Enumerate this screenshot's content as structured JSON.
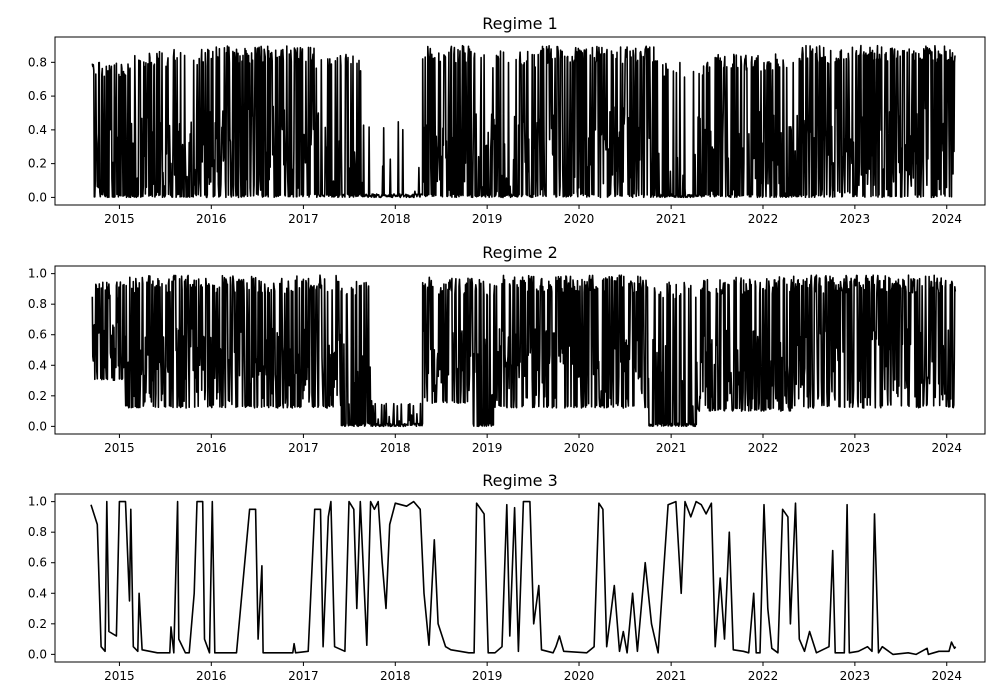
{
  "chart_data": [
    {
      "type": "line",
      "title": "Regime 1",
      "xlabel": "",
      "ylabel": "",
      "x_range": [
        "2014-04-20",
        "2024-06-01"
      ],
      "ylim": [
        -0.045,
        0.95
      ],
      "xticks": [
        "2015",
        "2016",
        "2017",
        "2018",
        "2019",
        "2020",
        "2021",
        "2022",
        "2023",
        "2024"
      ],
      "yticks": [
        "0.0",
        "0.2",
        "0.4",
        "0.6",
        "0.8"
      ],
      "ytick_values": [
        0,
        0.2,
        0.4,
        0.6,
        0.8
      ],
      "grid": false,
      "segments": [
        {
          "start": "2014-09-15",
          "end": "2015-03-01",
          "baseline": 0.0,
          "peak": 0.8,
          "density": 0.75
        },
        {
          "start": "2015-03-01",
          "end": "2016-01-15",
          "baseline": 0.0,
          "peak": 0.88,
          "density": 0.8
        },
        {
          "start": "2016-01-15",
          "end": "2017-02-15",
          "baseline": 0.0,
          "peak": 0.9,
          "density": 0.85
        },
        {
          "start": "2017-02-15",
          "end": "2017-09-01",
          "baseline": 0.0,
          "peak": 0.85,
          "density": 0.5
        },
        {
          "start": "2017-09-01",
          "end": "2018-04-20",
          "baseline": 0.0,
          "peak": 0.45,
          "density": 0.12
        },
        {
          "start": "2018-04-20",
          "end": "2019-01-20",
          "baseline": 0.0,
          "peak": 0.9,
          "density": 0.75
        },
        {
          "start": "2019-01-20",
          "end": "2019-08-01",
          "baseline": 0.0,
          "peak": 0.87,
          "density": 0.55
        },
        {
          "start": "2019-08-01",
          "end": "2020-11-15",
          "baseline": 0.0,
          "peak": 0.9,
          "density": 0.85
        },
        {
          "start": "2020-11-15",
          "end": "2021-06-01",
          "baseline": 0.0,
          "peak": 0.8,
          "density": 0.3
        },
        {
          "start": "2021-06-01",
          "end": "2022-06-01",
          "baseline": 0.0,
          "peak": 0.85,
          "density": 0.65
        },
        {
          "start": "2022-06-01",
          "end": "2024-02-05",
          "baseline": 0.0,
          "peak": 0.9,
          "density": 0.9
        }
      ]
    },
    {
      "type": "line",
      "title": "Regime 2",
      "xlabel": "",
      "ylabel": "",
      "x_range": [
        "2014-04-20",
        "2024-06-01"
      ],
      "ylim": [
        -0.05,
        1.05
      ],
      "xticks": [
        "2015",
        "2016",
        "2017",
        "2018",
        "2019",
        "2020",
        "2021",
        "2022",
        "2023",
        "2024"
      ],
      "yticks": [
        "0.0",
        "0.2",
        "0.4",
        "0.6",
        "0.8",
        "1.0"
      ],
      "ytick_values": [
        0,
        0.2,
        0.4,
        0.6,
        0.8,
        1.0
      ],
      "grid": false,
      "segments": [
        {
          "start": "2014-09-15",
          "end": "2015-01-20",
          "baseline": 0.3,
          "peak": 0.95,
          "density": 0.85
        },
        {
          "start": "2015-01-20",
          "end": "2017-06-01",
          "baseline": 0.12,
          "peak": 0.99,
          "density": 0.9
        },
        {
          "start": "2017-06-01",
          "end": "2017-10-01",
          "baseline": 0.0,
          "peak": 0.95,
          "density": 0.45
        },
        {
          "start": "2017-10-01",
          "end": "2018-04-20",
          "baseline": 0.0,
          "peak": 0.15,
          "density": 0.35
        },
        {
          "start": "2018-04-20",
          "end": "2018-11-01",
          "baseline": 0.15,
          "peak": 0.98,
          "density": 0.9
        },
        {
          "start": "2018-11-01",
          "end": "2019-02-01",
          "baseline": 0.0,
          "peak": 0.97,
          "density": 0.5
        },
        {
          "start": "2019-02-01",
          "end": "2020-10-01",
          "baseline": 0.12,
          "peak": 0.99,
          "density": 0.9
        },
        {
          "start": "2020-10-01",
          "end": "2021-04-15",
          "baseline": 0.0,
          "peak": 0.95,
          "density": 0.4
        },
        {
          "start": "2021-04-15",
          "end": "2022-05-01",
          "baseline": 0.1,
          "peak": 0.98,
          "density": 0.8
        },
        {
          "start": "2022-05-01",
          "end": "2024-02-05",
          "baseline": 0.12,
          "peak": 0.99,
          "density": 0.95
        }
      ]
    },
    {
      "type": "line",
      "title": "Regime 3",
      "xlabel": "",
      "ylabel": "",
      "x_range": [
        "2014-04-20",
        "2024-06-01"
      ],
      "ylim": [
        -0.05,
        1.05
      ],
      "xticks": [
        "2015",
        "2016",
        "2017",
        "2018",
        "2019",
        "2020",
        "2021",
        "2022",
        "2023",
        "2024"
      ],
      "yticks": [
        "0.0",
        "0.2",
        "0.4",
        "0.6",
        "0.8",
        "1.0"
      ],
      "ytick_values": [
        0,
        0.2,
        0.4,
        0.6,
        0.8,
        1.0
      ],
      "grid": false,
      "points": [
        [
          "2014-09-10",
          0.98
        ],
        [
          "2014-10-05",
          0.85
        ],
        [
          "2014-10-20",
          0.05
        ],
        [
          "2014-11-05",
          0.02
        ],
        [
          "2014-11-12",
          1.0
        ],
        [
          "2014-11-20",
          0.15
        ],
        [
          "2014-12-20",
          0.12
        ],
        [
          "2015-01-01",
          1.0
        ],
        [
          "2015-01-25",
          1.0
        ],
        [
          "2015-02-10",
          0.35
        ],
        [
          "2015-02-15",
          0.95
        ],
        [
          "2015-02-25",
          0.05
        ],
        [
          "2015-03-15",
          0.02
        ],
        [
          "2015-03-20",
          0.4
        ],
        [
          "2015-04-01",
          0.03
        ],
        [
          "2015-06-01",
          0.01
        ],
        [
          "2015-07-20",
          0.01
        ],
        [
          "2015-07-25",
          0.18
        ],
        [
          "2015-08-05",
          0.01
        ],
        [
          "2015-08-20",
          1.0
        ],
        [
          "2015-08-25",
          0.1
        ],
        [
          "2015-09-20",
          0.01
        ],
        [
          "2015-10-05",
          0.01
        ],
        [
          "2015-10-25",
          0.4
        ],
        [
          "2015-11-05",
          1.0
        ],
        [
          "2015-11-28",
          1.0
        ],
        [
          "2015-12-05",
          0.1
        ],
        [
          "2015-12-25",
          0.01
        ],
        [
          "2016-01-05",
          1.0
        ],
        [
          "2016-01-15",
          0.01
        ],
        [
          "2016-03-20",
          0.01
        ],
        [
          "2016-04-10",
          0.01
        ],
        [
          "2016-06-01",
          0.95
        ],
        [
          "2016-06-25",
          0.95
        ],
        [
          "2016-07-05",
          0.1
        ],
        [
          "2016-07-20",
          0.58
        ],
        [
          "2016-07-25",
          0.01
        ],
        [
          "2016-10-01",
          0.01
        ],
        [
          "2016-11-20",
          0.01
        ],
        [
          "2016-11-25",
          0.07
        ],
        [
          "2016-12-01",
          0.01
        ],
        [
          "2017-01-20",
          0.02
        ],
        [
          "2017-02-15",
          0.95
        ],
        [
          "2017-03-10",
          0.95
        ],
        [
          "2017-03-20",
          0.05
        ],
        [
          "2017-04-10",
          0.9
        ],
        [
          "2017-04-20",
          1.0
        ],
        [
          "2017-05-05",
          0.05
        ],
        [
          "2017-06-15",
          0.02
        ],
        [
          "2017-07-01",
          1.0
        ],
        [
          "2017-07-20",
          0.95
        ],
        [
          "2017-08-01",
          0.3
        ],
        [
          "2017-08-15",
          1.0
        ],
        [
          "2017-09-10",
          0.06
        ],
        [
          "2017-09-25",
          1.0
        ],
        [
          "2017-10-10",
          0.95
        ],
        [
          "2017-10-25",
          1.0
        ],
        [
          "2017-11-10",
          0.6
        ],
        [
          "2017-11-25",
          0.3
        ],
        [
          "2017-12-10",
          0.85
        ],
        [
          "2018-01-01",
          0.99
        ],
        [
          "2018-02-15",
          0.97
        ],
        [
          "2018-03-15",
          1.0
        ],
        [
          "2018-04-10",
          0.95
        ],
        [
          "2018-04-25",
          0.4
        ],
        [
          "2018-05-15",
          0.06
        ],
        [
          "2018-06-05",
          0.75
        ],
        [
          "2018-06-20",
          0.2
        ],
        [
          "2018-07-20",
          0.05
        ],
        [
          "2018-08-10",
          0.03
        ],
        [
          "2018-09-15",
          0.02
        ],
        [
          "2018-10-20",
          0.01
        ],
        [
          "2018-11-10",
          0.01
        ],
        [
          "2018-11-20",
          0.99
        ],
        [
          "2018-12-20",
          0.92
        ],
        [
          "2019-01-05",
          0.01
        ],
        [
          "2019-02-01",
          0.01
        ],
        [
          "2019-03-01",
          0.05
        ],
        [
          "2019-03-20",
          0.98
        ],
        [
          "2019-04-01",
          0.12
        ],
        [
          "2019-04-20",
          0.96
        ],
        [
          "2019-05-05",
          0.02
        ],
        [
          "2019-05-25",
          1.0
        ],
        [
          "2019-06-20",
          1.0
        ],
        [
          "2019-07-05",
          0.2
        ],
        [
          "2019-07-25",
          0.45
        ],
        [
          "2019-08-05",
          0.03
        ],
        [
          "2019-09-20",
          0.01
        ],
        [
          "2019-10-01",
          0.05
        ],
        [
          "2019-10-15",
          0.12
        ],
        [
          "2019-11-01",
          0.02
        ],
        [
          "2020-02-01",
          0.01
        ],
        [
          "2020-03-01",
          0.05
        ],
        [
          "2020-03-20",
          0.99
        ],
        [
          "2020-04-05",
          0.95
        ],
        [
          "2020-04-20",
          0.05
        ],
        [
          "2020-05-20",
          0.45
        ],
        [
          "2020-06-10",
          0.02
        ],
        [
          "2020-06-25",
          0.15
        ],
        [
          "2020-07-10",
          0.01
        ],
        [
          "2020-08-01",
          0.4
        ],
        [
          "2020-08-20",
          0.02
        ],
        [
          "2020-09-20",
          0.6
        ],
        [
          "2020-10-15",
          0.2
        ],
        [
          "2020-11-10",
          0.01
        ],
        [
          "2020-12-20",
          0.98
        ],
        [
          "2021-01-20",
          1.0
        ],
        [
          "2021-02-10",
          0.4
        ],
        [
          "2021-02-25",
          1.0
        ],
        [
          "2021-03-20",
          0.9
        ],
        [
          "2021-04-10",
          1.0
        ],
        [
          "2021-05-01",
          0.98
        ],
        [
          "2021-05-20",
          0.92
        ],
        [
          "2021-06-10",
          0.99
        ],
        [
          "2021-06-25",
          0.05
        ],
        [
          "2021-07-15",
          0.5
        ],
        [
          "2021-08-01",
          0.1
        ],
        [
          "2021-08-20",
          0.8
        ],
        [
          "2021-09-05",
          0.03
        ],
        [
          "2021-10-15",
          0.02
        ],
        [
          "2021-11-05",
          0.01
        ],
        [
          "2021-11-25",
          0.4
        ],
        [
          "2021-12-05",
          0.01
        ],
        [
          "2021-12-20",
          0.01
        ],
        [
          "2022-01-05",
          0.98
        ],
        [
          "2022-01-20",
          0.3
        ],
        [
          "2022-02-05",
          0.04
        ],
        [
          "2022-03-01",
          0.01
        ],
        [
          "2022-03-20",
          0.95
        ],
        [
          "2022-04-10",
          0.9
        ],
        [
          "2022-04-20",
          0.2
        ],
        [
          "2022-05-10",
          0.99
        ],
        [
          "2022-05-25",
          0.1
        ],
        [
          "2022-06-15",
          0.02
        ],
        [
          "2022-07-05",
          0.15
        ],
        [
          "2022-08-01",
          0.01
        ],
        [
          "2022-09-20",
          0.05
        ],
        [
          "2022-10-05",
          0.68
        ],
        [
          "2022-10-15",
          0.01
        ],
        [
          "2022-11-20",
          0.01
        ],
        [
          "2022-12-01",
          0.98
        ],
        [
          "2022-12-10",
          0.01
        ],
        [
          "2023-01-15",
          0.02
        ],
        [
          "2023-02-20",
          0.05
        ],
        [
          "2023-03-10",
          0.02
        ],
        [
          "2023-03-20",
          0.92
        ],
        [
          "2023-04-05",
          0.01
        ],
        [
          "2023-04-20",
          0.05
        ],
        [
          "2023-06-01",
          0.0
        ],
        [
          "2023-08-01",
          0.01
        ],
        [
          "2023-09-01",
          0.0
        ],
        [
          "2023-10-15",
          0.04
        ],
        [
          "2023-10-20",
          0.0
        ],
        [
          "2023-11-10",
          0.01
        ],
        [
          "2023-12-01",
          0.02
        ],
        [
          "2024-01-10",
          0.02
        ],
        [
          "2024-01-20",
          0.08
        ],
        [
          "2024-02-01",
          0.04
        ],
        [
          "2024-02-05",
          0.05
        ]
      ]
    }
  ]
}
